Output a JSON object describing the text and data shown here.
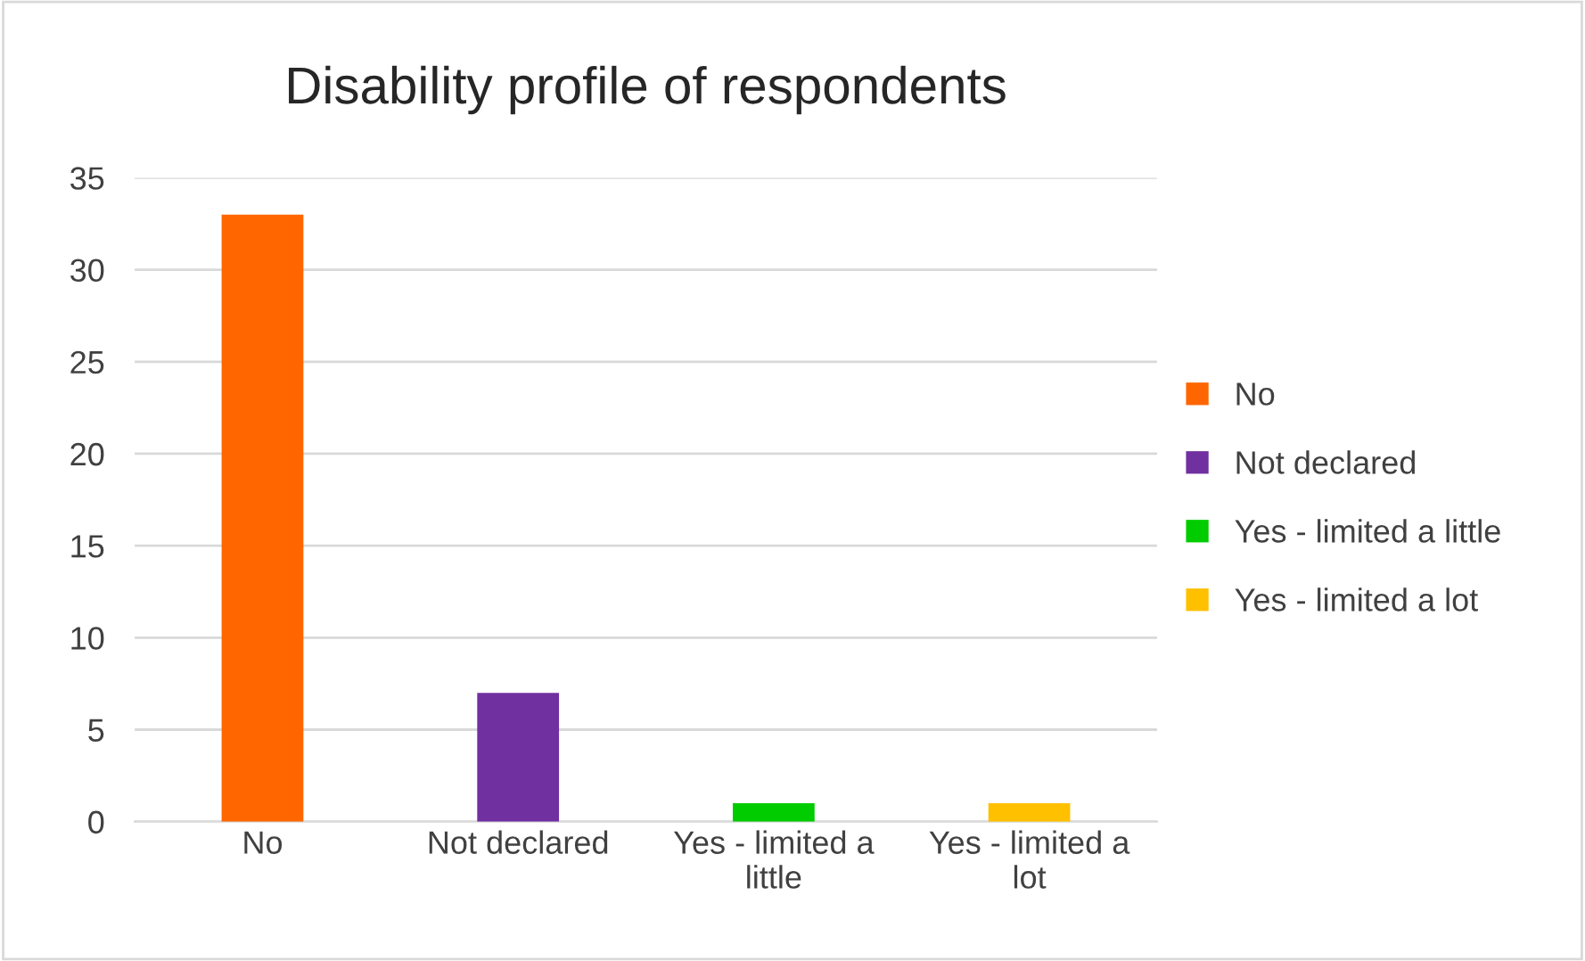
{
  "chart_data": {
    "type": "bar",
    "title": "Disability profile of respondents",
    "categories": [
      "No",
      "Not declared",
      "Yes - limited a little",
      "Yes - limited a lot"
    ],
    "series": [
      {
        "name": "No",
        "color": "#ff6600",
        "values": [
          33,
          null,
          null,
          null
        ]
      },
      {
        "name": "Not declared",
        "color": "#7030a0",
        "values": [
          null,
          7,
          null,
          null
        ]
      },
      {
        "name": "Yes - limited a little",
        "color": "#00cc00",
        "values": [
          null,
          null,
          1,
          null
        ]
      },
      {
        "name": "Yes - limited a lot",
        "color": "#ffc000",
        "values": [
          null,
          null,
          null,
          1
        ]
      }
    ],
    "ylim": [
      0,
      35
    ],
    "yticks": [
      0,
      5,
      10,
      15,
      20,
      25,
      30,
      35
    ],
    "grid": "y",
    "legend": "right"
  }
}
